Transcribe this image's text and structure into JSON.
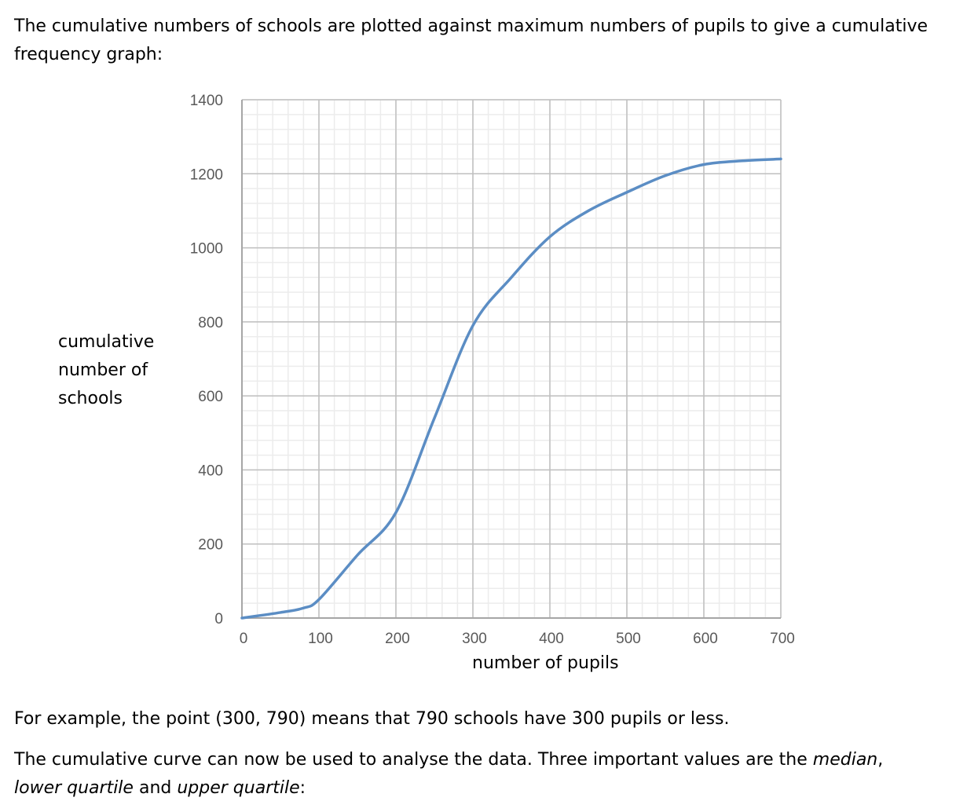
{
  "text": {
    "intro": "The cumulative numbers of schools are plotted against maximum numbers of pupils to give a cumulative frequency graph:",
    "example": "For example, the point (300, 790) means that 790 schools have 300 pupils or less.",
    "analysis_1": "The cumulative curve can now be used to analyse the data.  Three important values are the ",
    "median": "median",
    "comma": ", ",
    "lower_quartile": "lower quartile",
    "and": " and ",
    "upper_quartile": "upper quartile",
    "colon": ":"
  },
  "chart_data": {
    "type": "line",
    "title": "",
    "xlabel": "number of pupils",
    "ylabel": "cumulative number of schools",
    "xlim": [
      0,
      700
    ],
    "ylim": [
      0,
      1400
    ],
    "x_ticks": [
      "0",
      "100",
      "200",
      "300",
      "400",
      "500",
      "600",
      "700"
    ],
    "y_ticks": [
      "0",
      "200",
      "400",
      "600",
      "800",
      "1000",
      "1200",
      "1400"
    ],
    "grid": true,
    "line_color": "#5b8dc4",
    "series": [
      {
        "x": [
          0,
          50,
          80,
          100,
          150,
          200,
          250,
          300,
          350,
          400,
          450,
          500,
          550,
          600,
          650,
          700
        ],
        "y": [
          0,
          15,
          27,
          50,
          170,
          285,
          540,
          790,
          920,
          1030,
          1100,
          1150,
          1195,
          1225,
          1235,
          1240
        ]
      }
    ]
  }
}
